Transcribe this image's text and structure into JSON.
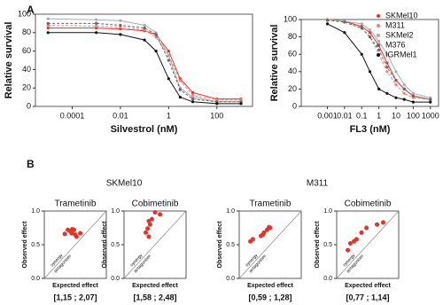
{
  "panel_labels": [
    "A",
    "B"
  ],
  "groups": [
    "SKMel10",
    "M311"
  ],
  "chart_data": [
    {
      "type": "line",
      "xlabel": "Silvestrol (nM)",
      "ylabel": "Relative survival",
      "xscale": "log",
      "xlim": [
        3e-06,
        3000
      ],
      "xticks": [
        0.0001,
        0.01,
        1,
        100
      ],
      "ylim": [
        0,
        100
      ],
      "yticks": [
        0,
        20,
        40,
        60,
        80,
        100
      ],
      "x": [
        1e-05,
        0.001,
        0.01,
        0.1,
        0.3,
        1,
        3,
        10,
        100,
        1000
      ],
      "series": [
        {
          "color": "#e8302a",
          "values": [
            85,
            85,
            84,
            82,
            78,
            60,
            30,
            15,
            8,
            8
          ]
        },
        {
          "color": "#f08080",
          "values": [
            88,
            87,
            86,
            83,
            75,
            55,
            28,
            12,
            7,
            7
          ]
        },
        {
          "color": "#aaaaaa",
          "values": [
            95,
            94,
            93,
            88,
            80,
            55,
            20,
            10,
            5,
            5
          ]
        },
        {
          "color": "#666666",
          "values": [
            90,
            90,
            88,
            85,
            78,
            50,
            18,
            8,
            5,
            5
          ]
        },
        {
          "color": "#111111",
          "values": [
            80,
            80,
            78,
            72,
            60,
            30,
            10,
            5,
            3,
            3
          ]
        }
      ]
    },
    {
      "type": "line",
      "xlabel": "FL3 (nM)",
      "ylabel": "Relative survival",
      "xscale": "log",
      "legend": "upper right",
      "xlim": [
        3e-05,
        3000
      ],
      "xticks": [
        0.001,
        0.01,
        0.1,
        1,
        10,
        100,
        1000
      ],
      "ylim": [
        0,
        100
      ],
      "yticks": [
        0,
        20,
        40,
        60,
        80,
        100
      ],
      "x": [
        0.001,
        0.01,
        0.1,
        0.3,
        1,
        3,
        10,
        30,
        100,
        1000
      ],
      "series": [
        {
          "name": "SKMel10",
          "color": "#e8302a",
          "values": [
            100,
            98,
            92,
            85,
            70,
            50,
            30,
            20,
            12,
            8
          ]
        },
        {
          "name": "M311",
          "color": "#f08080",
          "values": [
            100,
            97,
            90,
            80,
            60,
            40,
            25,
            15,
            10,
            8
          ]
        },
        {
          "name": "SKMel2",
          "color": "#aaaaaa",
          "values": [
            100,
            98,
            95,
            88,
            75,
            60,
            40,
            25,
            15,
            10
          ]
        },
        {
          "name": "M376",
          "color": "#666666",
          "values": [
            99,
            97,
            90,
            80,
            65,
            45,
            30,
            20,
            12,
            8
          ]
        },
        {
          "name": "IGRMel1",
          "color": "#111111",
          "values": [
            95,
            85,
            60,
            40,
            20,
            15,
            10,
            8,
            5,
            5
          ]
        }
      ]
    },
    {
      "type": "scatter",
      "title": "Trametinib",
      "xlabel": "Expected effect",
      "ylabel": "Observed effect",
      "annotation": "[1,15 ; 2,07]",
      "diagonal_labels": [
        "synergy",
        "antagonism"
      ],
      "color": "#e8302a",
      "xlim": [
        0,
        1
      ],
      "ylim": [
        0,
        1
      ],
      "yticks": [
        {
          "value": 0,
          "label": "0.0"
        },
        0.5,
        {
          "value": 1,
          "label": "1.0"
        }
      ],
      "x": [
        0.33,
        0.38,
        0.42,
        0.45,
        0.48,
        0.5,
        0.52,
        0.58,
        0.44
      ],
      "values": [
        0.66,
        0.72,
        0.7,
        0.73,
        0.72,
        0.65,
        0.62,
        0.67,
        0.67
      ]
    },
    {
      "type": "scatter",
      "title": "Cobimetinib",
      "xlabel": "Expected effect",
      "ylabel": "Observed effect",
      "annotation": "[1,58 ; 2,48]",
      "diagonal_labels": [
        "synergy",
        "antagonism"
      ],
      "color": "#e8302a",
      "xlim": [
        0,
        1
      ],
      "ylim": [
        0,
        1
      ],
      "yticks": [
        {
          "value": 0,
          "label": "0.0"
        },
        0.5,
        {
          "value": 1,
          "label": "1.0"
        }
      ],
      "x": [
        0.35,
        0.38,
        0.4,
        0.42,
        0.45,
        0.5,
        0.58,
        0.4
      ],
      "values": [
        0.68,
        0.74,
        0.62,
        0.8,
        0.88,
        0.98,
        0.95,
        0.85
      ]
    },
    {
      "type": "scatter",
      "title": "Trametinib",
      "xlabel": "Expected effect",
      "ylabel": "Observed effect",
      "annotation": "[0,59 ; 1,28]",
      "diagonal_labels": [
        "synergy",
        "antagonism"
      ],
      "color": "#e8302a",
      "xlim": [
        0,
        1
      ],
      "ylim": [
        0,
        1
      ],
      "yticks": [
        {
          "value": 0,
          "label": "0.0"
        },
        0.5,
        {
          "value": 1,
          "label": "1.0"
        }
      ],
      "x": [
        0.18,
        0.22,
        0.35,
        0.4,
        0.45,
        0.48,
        0.5,
        0.38
      ],
      "values": [
        0.55,
        0.58,
        0.63,
        0.68,
        0.72,
        0.76,
        0.75,
        0.65
      ]
    },
    {
      "type": "scatter",
      "title": "Cobimetinib",
      "xlabel": "Expected effect",
      "ylabel": "Observed effect",
      "annotation": "[0,77 ; 1,14]",
      "diagonal_labels": [
        "synergy",
        "antagonism"
      ],
      "color": "#e8302a",
      "xlim": [
        0,
        1
      ],
      "ylim": [
        0,
        1
      ],
      "yticks": [
        {
          "value": 0,
          "label": "0.0"
        },
        0.5,
        {
          "value": 1,
          "label": "1.0"
        }
      ],
      "x": [
        0.18,
        0.22,
        0.28,
        0.32,
        0.4,
        0.48,
        0.65,
        0.75
      ],
      "values": [
        0.42,
        0.52,
        0.55,
        0.58,
        0.68,
        0.75,
        0.8,
        0.83
      ]
    }
  ]
}
